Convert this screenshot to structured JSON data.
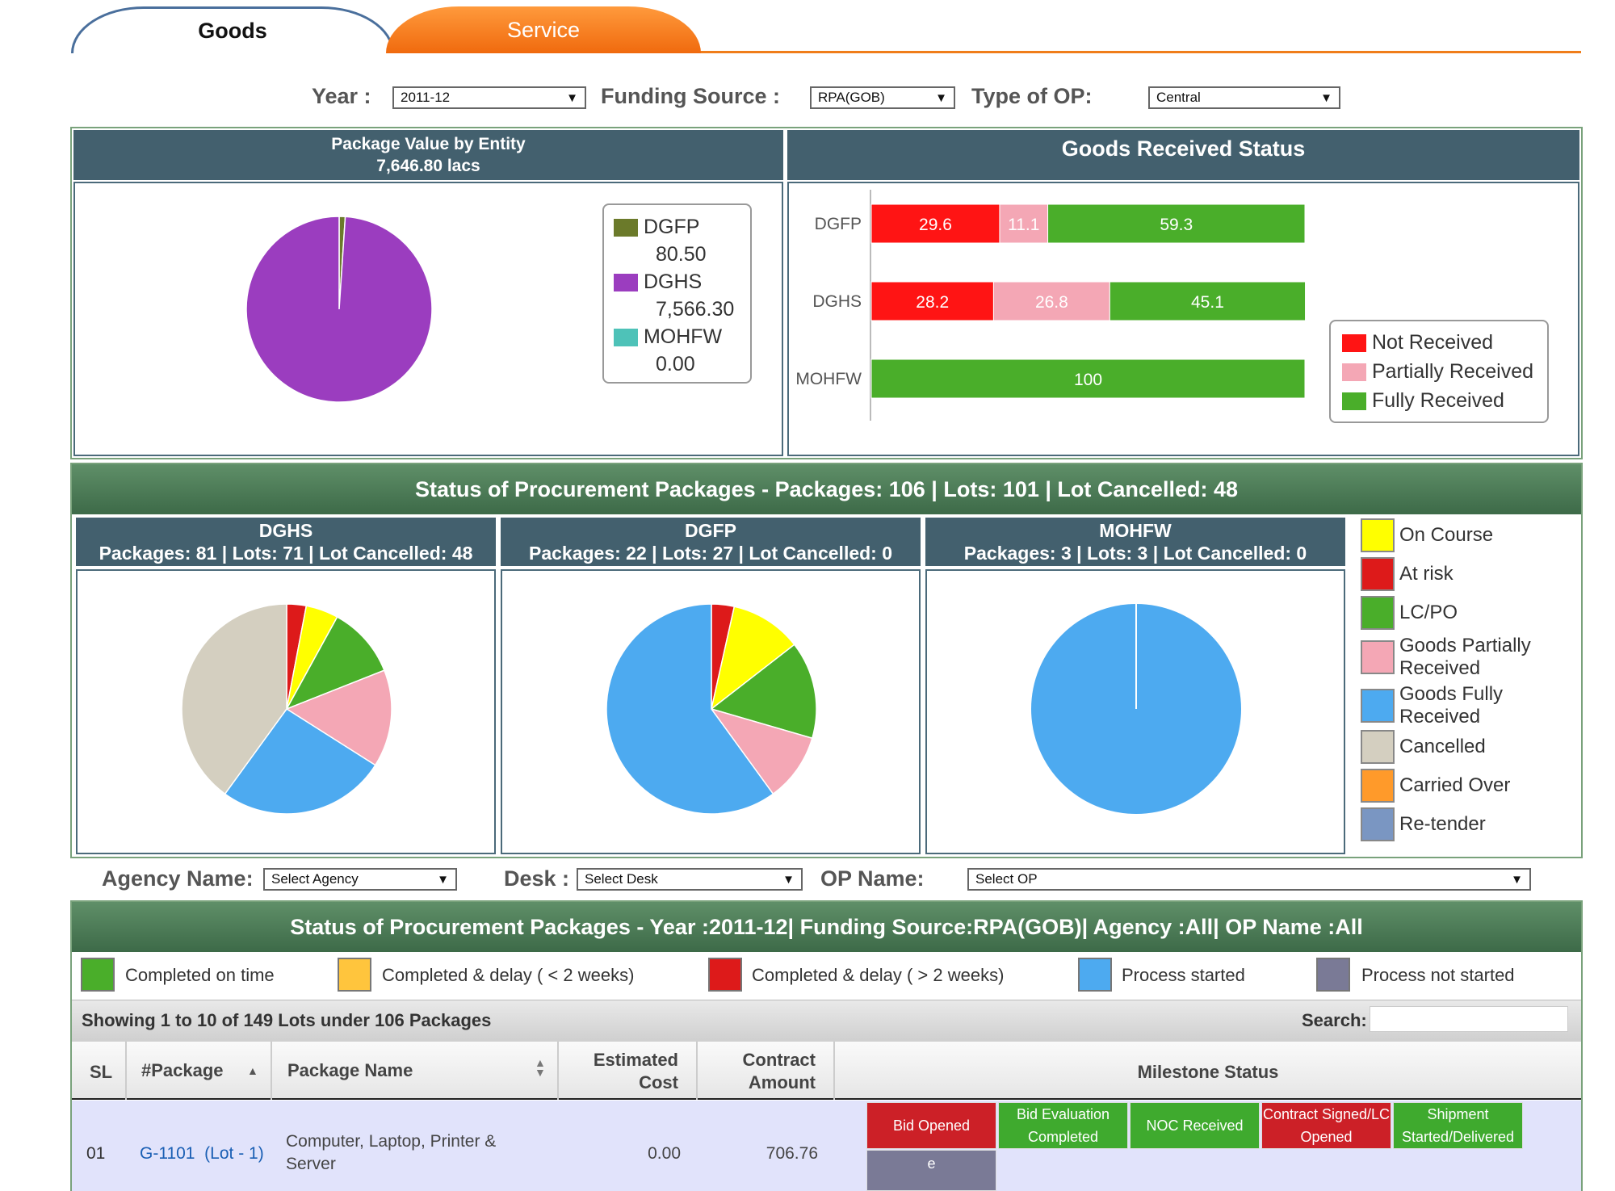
{
  "tabs": {
    "goods": "Goods",
    "service": "Service"
  },
  "filters": {
    "year_label": "Year :",
    "year_value": "2011-12",
    "funding_label": "Funding Source :",
    "funding_value": "RPA(GOB)",
    "op_type_label": "Type of OP:",
    "op_type_value": "Central"
  },
  "package_value": {
    "title": "Package Value by Entity",
    "subtitle": "7,646.80 lacs",
    "legend": [
      {
        "name": "DGFP",
        "value": "80.50",
        "color": "#6b7a2a"
      },
      {
        "name": "DGHS",
        "value": "7,566.30",
        "color": "#9b3dbf"
      },
      {
        "name": "MOHFW",
        "value": "0.00",
        "color": "#4ec2b8"
      }
    ]
  },
  "goods_received": {
    "title": "Goods Received Status",
    "legend": [
      {
        "name": "Not Received",
        "color": "#ff1414"
      },
      {
        "name": "Partially Received",
        "color": "#f4a7b5"
      },
      {
        "name": "Fully Received",
        "color": "#4aae2a"
      }
    ]
  },
  "procurement": {
    "title": "Status of Procurement Packages - Packages: 106 | Lots: 101 | Lot Cancelled: 48",
    "panels": [
      {
        "name": "DGHS",
        "stats": "Packages: 81 | Lots: 71 | Lot Cancelled: 48"
      },
      {
        "name": "DGFP",
        "stats": "Packages: 22 | Lots: 27 | Lot Cancelled: 0"
      },
      {
        "name": "MOHFW",
        "stats": "Packages: 3 | Lots: 3 | Lot Cancelled: 0"
      }
    ],
    "legend": [
      {
        "name": "On Course",
        "color": "#ffff00"
      },
      {
        "name": "At risk",
        "color": "#dd1a1a"
      },
      {
        "name": "LC/PO",
        "color": "#4aae2a"
      },
      {
        "name": "Goods Partially Received",
        "color": "#f4a7b5"
      },
      {
        "name": "Goods Fully Received",
        "color": "#4daaf0"
      },
      {
        "name": "Cancelled",
        "color": "#d4cfc0"
      },
      {
        "name": "Carried Over",
        "color": "#ff9a2a"
      },
      {
        "name": "Re-tender",
        "color": "#7a96c2"
      }
    ]
  },
  "chart_data": [
    {
      "type": "pie",
      "title": "Package Value by Entity",
      "categories": [
        "DGFP",
        "DGHS",
        "MOHFW"
      ],
      "values": [
        80.5,
        7566.3,
        0.0
      ]
    },
    {
      "type": "bar",
      "orientation": "horizontal-stacked",
      "title": "Goods Received Status",
      "categories": [
        "DGFP",
        "DGHS",
        "MOHFW"
      ],
      "series": [
        {
          "name": "Not Received",
          "values": [
            29.6,
            28.2,
            0
          ]
        },
        {
          "name": "Partially Received",
          "values": [
            11.1,
            26.8,
            0
          ]
        },
        {
          "name": "Fully Received",
          "values": [
            59.3,
            45.1,
            100
          ]
        }
      ],
      "xlim": [
        0,
        100
      ]
    },
    {
      "type": "pie",
      "title": "DGHS",
      "categories": [
        "At risk",
        "On Course",
        "LC/PO",
        "Goods Partially Received",
        "Goods Fully Received",
        "Cancelled"
      ],
      "values": [
        3,
        5,
        11,
        15,
        26,
        40
      ]
    },
    {
      "type": "pie",
      "title": "DGFP",
      "categories": [
        "At risk",
        "On Course",
        "LC/PO",
        "Goods Partially Received",
        "Goods Fully Received"
      ],
      "values": [
        3.5,
        11,
        15,
        10.5,
        60
      ]
    },
    {
      "type": "pie",
      "title": "MOHFW",
      "categories": [
        "Goods Fully Received"
      ],
      "values": [
        100
      ]
    }
  ],
  "filters2": {
    "agency_label": "Agency Name:",
    "agency_value": "Select Agency",
    "desk_label": "Desk :",
    "desk_value": "Select Desk",
    "opname_label": "OP Name:",
    "opname_value": "Select OP"
  },
  "status_section": {
    "title": "Status of Procurement Packages - Year :2011-12| Funding Source:RPA(GOB)| Agency :All| OP Name :All",
    "legend": [
      {
        "name": "Completed on time",
        "color": "#4aae2a"
      },
      {
        "name": "Completed & delay ( < 2 weeks)",
        "color": "#ffc53d"
      },
      {
        "name": "Completed & delay ( > 2 weeks)",
        "color": "#dd1a1a"
      },
      {
        "name": "Process started",
        "color": "#4daaf0"
      },
      {
        "name": "Process not started",
        "color": "#7a7a96"
      }
    ],
    "showing": "Showing 1 to 10 of 149 Lots under 106 Packages",
    "search_label": "Search:"
  },
  "table": {
    "headers": {
      "sl": "SL",
      "package": "#Package",
      "name": "Package Name",
      "est1": "Estimated",
      "est2": "Cost",
      "con1": "Contract",
      "con2": "Amount",
      "milestone": "Milestone Status"
    },
    "rows": [
      {
        "sl": "01",
        "package": "G-1101",
        "lot": "(Lot - 1)",
        "name_line1": "Computer, Laptop, Printer &",
        "name_line2": "Server",
        "estimated": "0.00",
        "contract": "706.76",
        "milestones": [
          {
            "label1": "Bid Opened",
            "label2": "",
            "color": "#cc2027"
          },
          {
            "label1": "Bid Evaluation",
            "label2": "Completed",
            "color": "#3faa2e"
          },
          {
            "label1": "NOC Received",
            "label2": "",
            "color": "#3faa2e"
          },
          {
            "label1": "Contract Signed/LC",
            "label2": "Opened",
            "color": "#cc2027"
          },
          {
            "label1": "Shipment",
            "label2": "Started/Delivered",
            "color": "#3faa2e"
          },
          {
            "label1": "e",
            "label2": "",
            "color": "#7a7a96"
          }
        ]
      }
    ]
  }
}
